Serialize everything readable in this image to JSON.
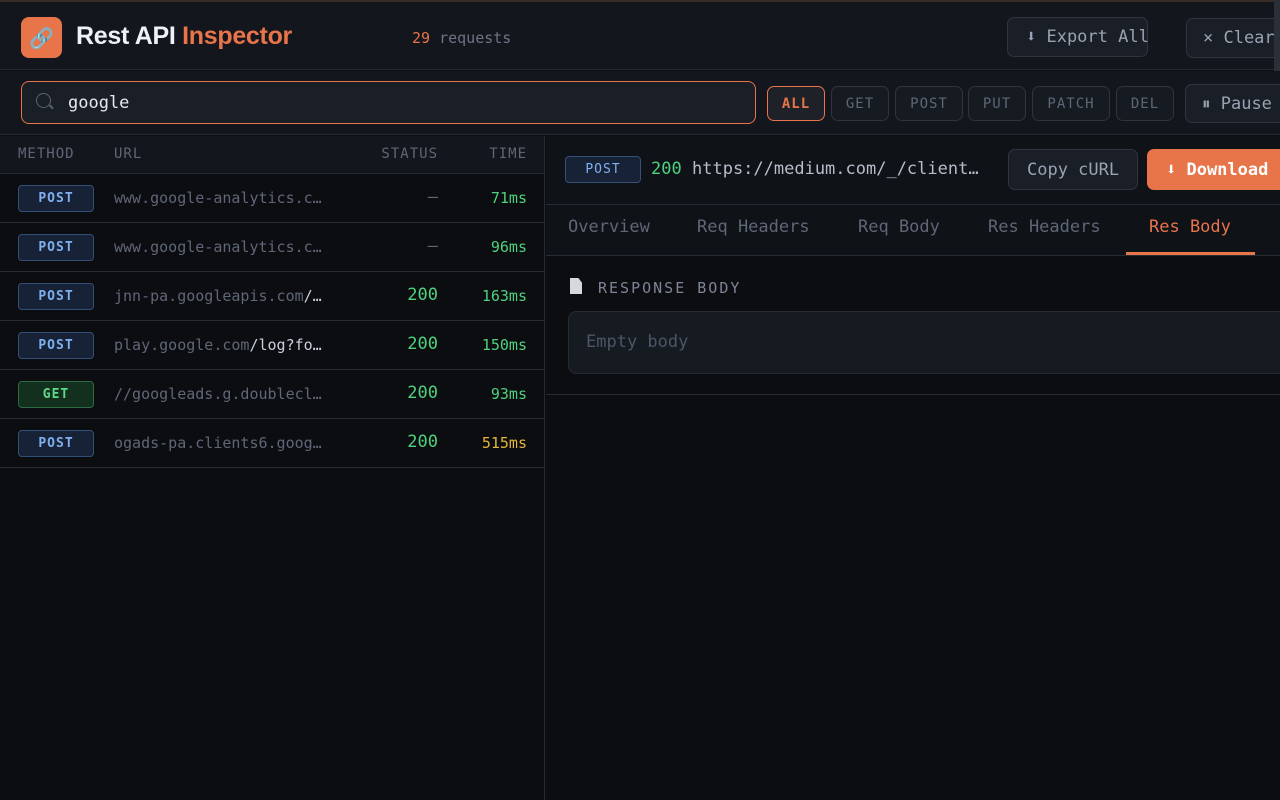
{
  "header": {
    "title_part1": "Rest API",
    "title_part2": "Inspector",
    "request_count": "29",
    "request_label": "requests",
    "export_label": "⬇ Export All",
    "clear_label": "× Clear",
    "logo_icon": "link-icon",
    "accent": "#e8744a"
  },
  "toolbar": {
    "search_value": "google",
    "filters": [
      "ALL",
      "GET",
      "POST",
      "PUT",
      "PATCH",
      "DEL"
    ],
    "active_filter": "ALL",
    "pause_label": "⏸ Pause"
  },
  "list": {
    "columns": [
      "METHOD",
      "URL",
      "STATUS",
      "TIME"
    ],
    "rows": [
      {
        "method": "POST",
        "url": "www.google-analytics.c…",
        "url_path": "",
        "status": "—",
        "time": "71ms"
      },
      {
        "method": "POST",
        "url": "www.google-analytics.c…",
        "url_path": "",
        "status": "—",
        "time": "96ms"
      },
      {
        "method": "POST",
        "url": "jnn-pa.googleapis.com",
        "url_path": "/…",
        "status": "200",
        "time": "163ms"
      },
      {
        "method": "POST",
        "url": "play.google.com",
        "url_path": "/log?fo…",
        "status": "200",
        "time": "150ms"
      },
      {
        "method": "GET",
        "url": "//googleads.g.doublecl…",
        "url_path": "",
        "status": "200",
        "time": "93ms"
      },
      {
        "method": "POST",
        "url": "ogads-pa.clients6.goog…",
        "url_path": "",
        "status": "200",
        "time": "515ms"
      }
    ]
  },
  "detail": {
    "method": "POST",
    "status": "200",
    "url": "https://medium.com/_/client…",
    "copy_curl": "Copy cURL",
    "download": "⬇ Download",
    "tabs": [
      "Overview",
      "Req Headers",
      "Req Body",
      "Res Headers",
      "Res Body"
    ],
    "active_tab": "Res Body",
    "section_title": "RESPONSE BODY",
    "body_text": "Empty body"
  }
}
